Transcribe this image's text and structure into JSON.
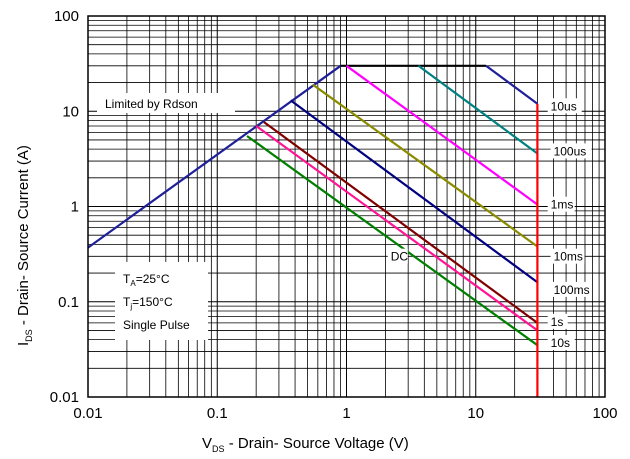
{
  "chart_data": {
    "type": "line",
    "x_scale": "log",
    "y_scale": "log",
    "xlim": [
      0.01,
      100
    ],
    "ylim": [
      0.01,
      100
    ],
    "grid": true,
    "x_ticks": [
      "0.01",
      "0.1",
      "1",
      "10",
      "100"
    ],
    "y_ticks": [
      "0.01",
      "0.1",
      "1",
      "10",
      "100"
    ],
    "xlabel": {
      "main": "V",
      "sub": "DS",
      "rest": " - Drain- Source Voltage (V)"
    },
    "ylabel": {
      "main": "I",
      "sub": "DS",
      "rest": " - Drain- Source Current (A)"
    },
    "annotations": {
      "rdson": "Limited by Rdson",
      "conditions": [
        {
          "main": "T",
          "sub": "A",
          "rest": "=25°C"
        },
        {
          "main": "T",
          "sub": "j",
          "rest": "=150°C"
        },
        {
          "main": "Single Pulse",
          "sub": "",
          "rest": ""
        }
      ]
    },
    "series": [
      {
        "name": "Limited by Rdson",
        "color": "#1f1f9a",
        "points": [
          [
            0.01,
            0.37
          ],
          [
            0.9,
            30
          ]
        ]
      },
      {
        "name": "current limit",
        "color": "#000000",
        "points": [
          [
            0.9,
            30
          ],
          [
            12,
            30
          ]
        ]
      },
      {
        "name": "10us",
        "color": "#1f1f9a",
        "points": [
          [
            12,
            30
          ],
          [
            30,
            12
          ]
        ]
      },
      {
        "name": "100us",
        "color": "#008080",
        "points": [
          [
            3.6,
            30
          ],
          [
            30,
            3.6
          ]
        ]
      },
      {
        "name": "1ms",
        "color": "#ff00ff",
        "points": [
          [
            1,
            30
          ],
          [
            30,
            1.05
          ]
        ]
      },
      {
        "name": "10ms",
        "color": "#8b8b00",
        "points": [
          [
            0.55,
            19
          ],
          [
            30,
            0.38
          ]
        ]
      },
      {
        "name": "100ms",
        "color": "#000080",
        "points": [
          [
            0.37,
            13
          ],
          [
            30,
            0.16
          ]
        ]
      },
      {
        "name": "1s",
        "color": "#800000",
        "points": [
          [
            0.23,
            7.7
          ],
          [
            30,
            0.06
          ]
        ]
      },
      {
        "name": "",
        "color": "#ff1493",
        "points": [
          [
            0.2,
            7
          ],
          [
            30,
            0.05
          ]
        ]
      },
      {
        "name": "10s",
        "color": "#008000",
        "points": [
          [
            0.17,
            5.5
          ],
          [
            30,
            0.035
          ]
        ]
      },
      {
        "name": "V limit",
        "color": "#ff0000",
        "points": [
          [
            30,
            0.01
          ],
          [
            30,
            12
          ]
        ]
      }
    ],
    "series_labels": [
      {
        "text": "10us",
        "x": 38,
        "y": 11
      },
      {
        "text": "100us",
        "x": 40,
        "y": 3.7
      },
      {
        "text": "1ms",
        "x": 38,
        "y": 1.02
      },
      {
        "text": "10ms",
        "x": 40,
        "y": 0.29
      },
      {
        "text": "100ms",
        "x": 40,
        "y": 0.13
      },
      {
        "text": "1s",
        "x": 38,
        "y": 0.06
      },
      {
        "text": "10s",
        "x": 38,
        "y": 0.036
      },
      {
        "text": "DC",
        "x": 2.2,
        "y": 0.29
      }
    ]
  }
}
